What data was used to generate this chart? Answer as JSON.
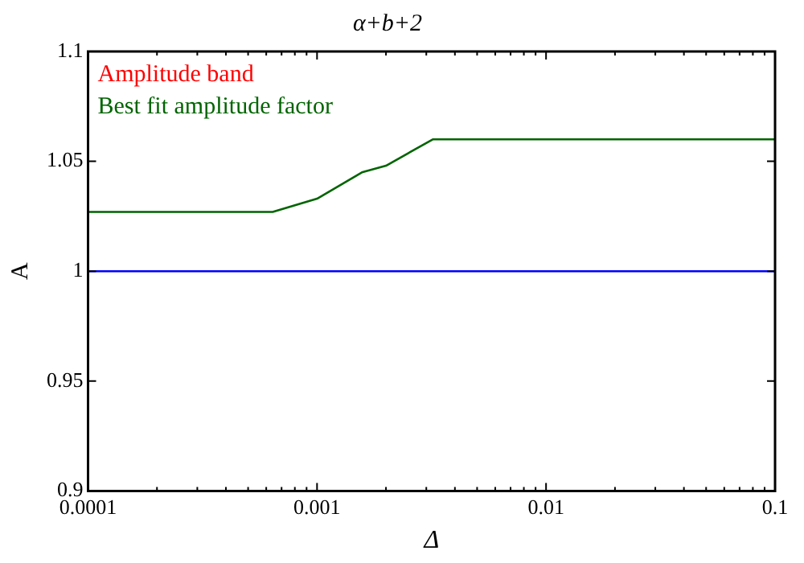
{
  "chart_data": {
    "type": "line",
    "title": "α+b+2",
    "xlabel": "Δ",
    "ylabel": "A",
    "log": "x",
    "xlim": [
      0.0001,
      0.1
    ],
    "xticks": [
      0.0001,
      0.001,
      0.01,
      0.1
    ],
    "ylim": [
      0.9,
      1.1
    ],
    "yticks": [
      0.9,
      0.95,
      1,
      1.05,
      1.1
    ],
    "grid": false,
    "legend": "top left",
    "marker": "none",
    "line_style": "solid",
    "annotations": [
      "Amplitude band"
    ],
    "ref_lines": [
      {
        "axis": "y",
        "value": 1,
        "color": "#0000ff"
      }
    ],
    "series": [
      {
        "name": "Best fit amplitude factor",
        "color": "#006400",
        "x": [
          0.0001,
          0.00064,
          0.001,
          0.00157,
          0.002,
          0.0032,
          0.1
        ],
        "values": [
          1.027,
          1.027,
          1.033,
          1.045,
          1.048,
          1.06,
          1.06
        ]
      }
    ]
  }
}
